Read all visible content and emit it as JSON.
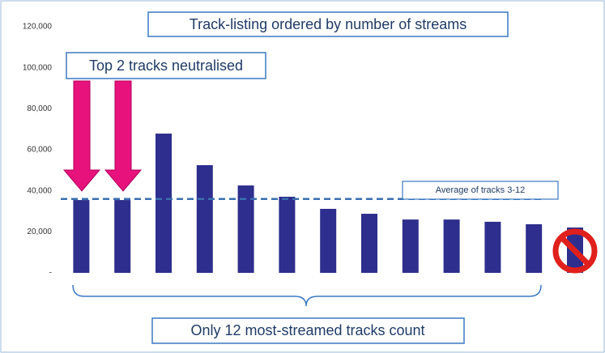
{
  "chart_data": {
    "type": "bar",
    "title": "Track-listing ordered by number of streams",
    "annotations": {
      "top": "Top 2 tracks neutralised",
      "bottom": "Only 12 most-streamed tracks count"
    },
    "average_line": {
      "label": "Average of tracks 3-12",
      "value": 36000
    },
    "categories": [
      null,
      null,
      null,
      null,
      null,
      null,
      null,
      null,
      null,
      null,
      null,
      null,
      null
    ],
    "values": [
      35500,
      35500,
      67900,
      52500,
      42600,
      37100,
      31200,
      28800,
      26000,
      26000,
      24900,
      23700,
      22100
    ],
    "color": "#2e2e8e",
    "ylim": [
      0,
      120000
    ],
    "yticks": [
      {
        "value": 0,
        "label": "-"
      },
      {
        "value": 20000,
        "label": "20,000"
      },
      {
        "value": 40000,
        "label": "40,000"
      },
      {
        "value": 60000,
        "label": "60,000"
      },
      {
        "value": 80000,
        "label": "80,000"
      },
      {
        "value": 100000,
        "label": "100,000"
      },
      {
        "value": 120000,
        "label": "120,000"
      }
    ]
  }
}
